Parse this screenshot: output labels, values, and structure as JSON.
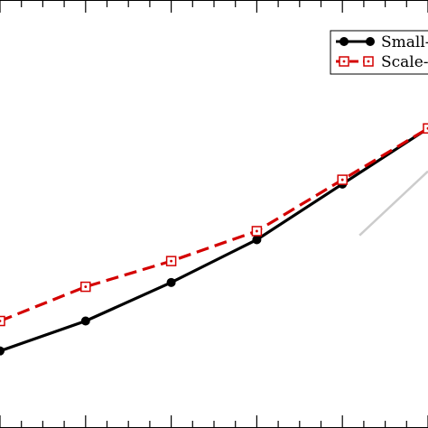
{
  "chart_data": {
    "type": "line",
    "title": "",
    "xlabel": "",
    "ylabel": "",
    "x": [
      -1,
      0,
      1,
      2,
      3,
      4
    ],
    "xlim": [
      -1,
      4
    ],
    "ylim": [
      0,
      1
    ],
    "legend_position": "top-right",
    "grid": false,
    "series": [
      {
        "name": "Small-",
        "color": "#000000",
        "style": "solid",
        "marker": "filled-circle",
        "values": [
          0.18,
          0.25,
          0.34,
          0.44,
          0.57,
          0.7
        ]
      },
      {
        "name": "Scale-f",
        "color": "#d40000",
        "style": "dashed",
        "marker": "dotted-square",
        "values": [
          0.25,
          0.33,
          0.39,
          0.46,
          0.58,
          0.7
        ]
      }
    ],
    "reference_line": {
      "color": "#cccccc",
      "x": [
        3.2,
        4
      ],
      "y": [
        0.45,
        0.6
      ]
    }
  }
}
